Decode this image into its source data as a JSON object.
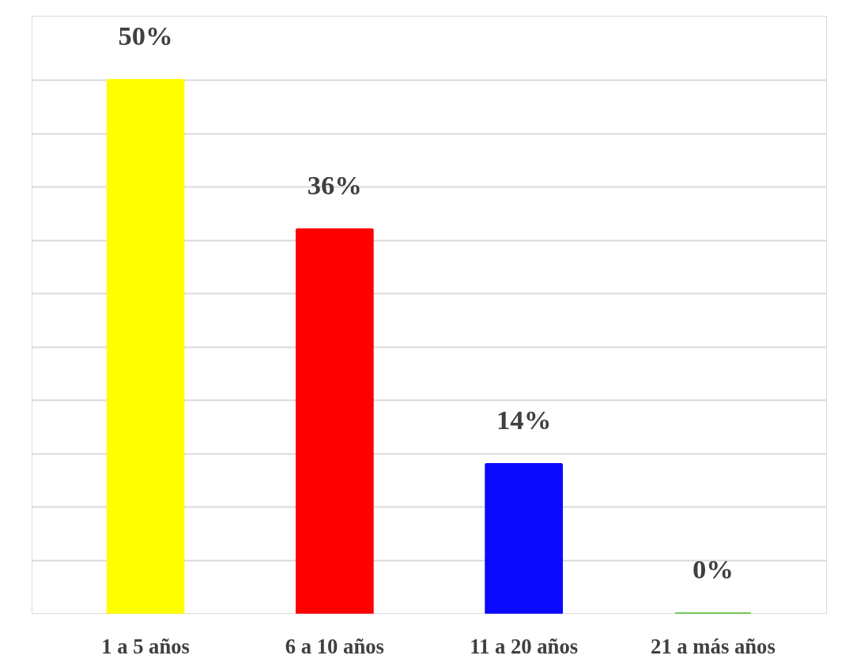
{
  "chart_data": {
    "type": "bar",
    "categories": [
      "1 a 5 años",
      "6 a 10 años",
      "11 a 20 años",
      "21 a más años"
    ],
    "values": [
      50,
      36,
      14,
      0
    ],
    "colors": [
      "#ffff00",
      "#ff0000",
      "#0a0aff",
      "#4cc02c"
    ],
    "value_labels": [
      "50%",
      "36%",
      "14%",
      "0%"
    ],
    "ylim": [
      0,
      56
    ],
    "yticks": [
      {
        "value": 0,
        "label": null
      },
      {
        "value": 5,
        "label": null
      },
      {
        "value": 10,
        "label": null
      },
      {
        "value": 15,
        "label": null
      },
      {
        "value": 20,
        "label": null
      },
      {
        "value": 25,
        "label": null
      },
      {
        "value": 30,
        "label": null
      },
      {
        "value": 35,
        "label": null
      },
      {
        "value": 40,
        "label": null
      },
      {
        "value": 45,
        "label": null
      },
      {
        "value": 50,
        "label": null
      }
    ],
    "grid": "y"
  }
}
